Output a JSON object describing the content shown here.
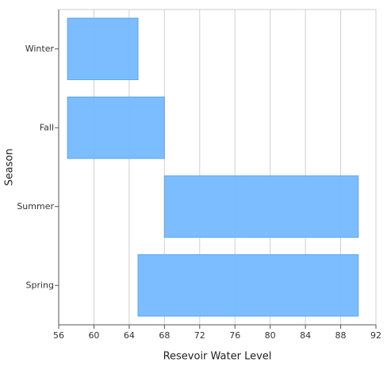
{
  "chart_data": {
    "type": "range-bar",
    "orientation": "horizontal",
    "x_label": "Resevoir Water Level",
    "y_label": "Season",
    "categories": [
      "Spring",
      "Summer",
      "Fall",
      "Winter"
    ],
    "low": [
      65,
      68,
      57,
      57
    ],
    "high": [
      90,
      90,
      68,
      65
    ],
    "color": "#74b9ff",
    "xlim": [
      56,
      92
    ],
    "xticks": [
      56,
      60,
      64,
      68,
      72,
      76,
      80,
      84,
      88,
      92
    ],
    "grid": true
  }
}
